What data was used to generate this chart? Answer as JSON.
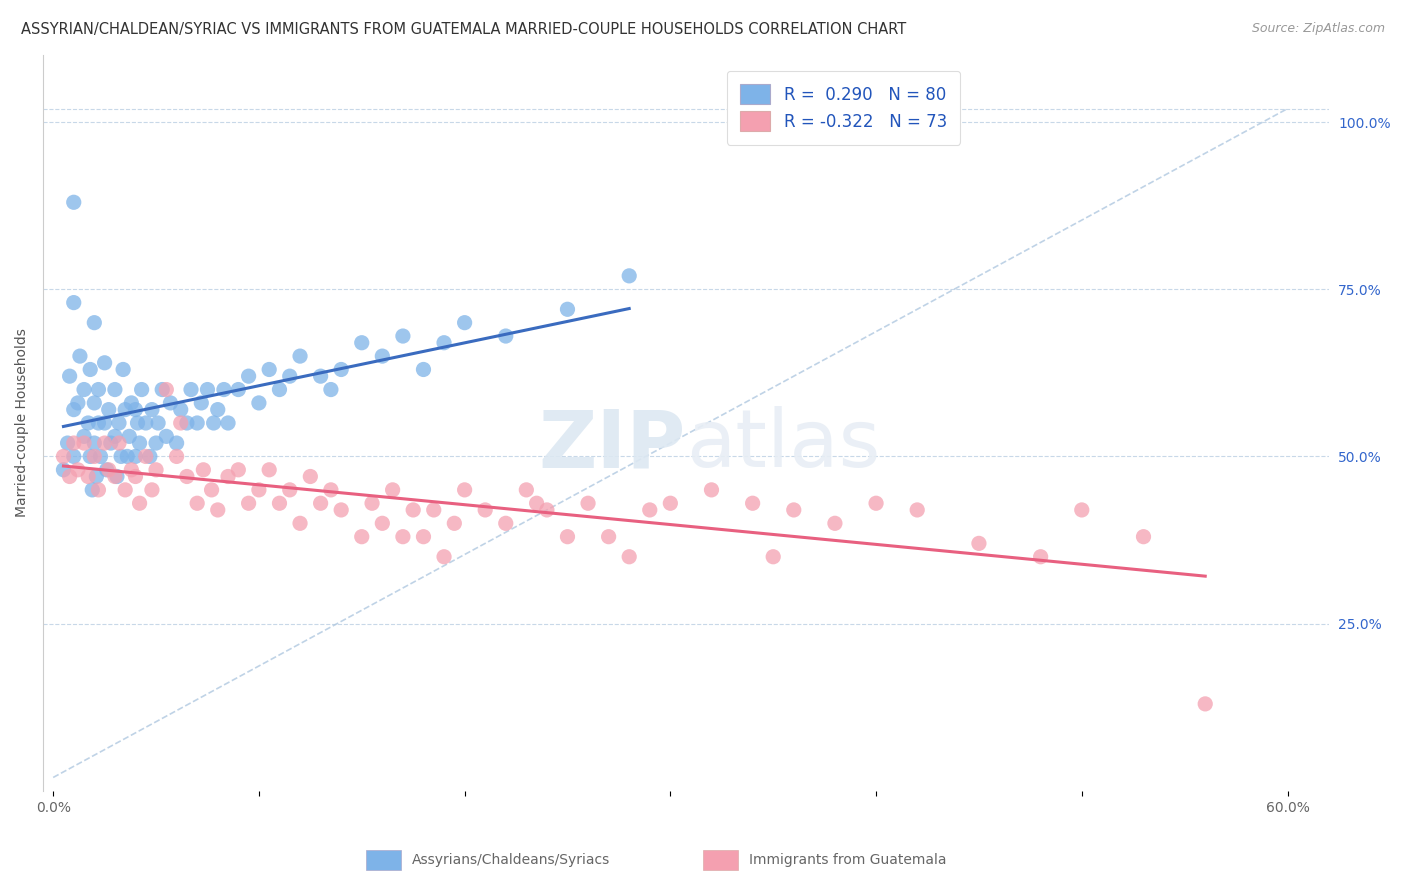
{
  "title": "ASSYRIAN/CHALDEAN/SYRIAC VS IMMIGRANTS FROM GUATEMALA MARRIED-COUPLE HOUSEHOLDS CORRELATION CHART",
  "source": "Source: ZipAtlas.com",
  "ylabel": "Married-couple Households",
  "xlabel_blue": "Assyrians/Chaldeans/Syriacs",
  "xlabel_pink": "Immigrants from Guatemala",
  "x_ticks": [
    "0.0%",
    "",
    "",
    "",
    "",
    "",
    "60.0%"
  ],
  "x_tick_vals": [
    0.0,
    0.1,
    0.2,
    0.3,
    0.4,
    0.5,
    0.6
  ],
  "y_ticks_right": [
    "25.0%",
    "50.0%",
    "75.0%",
    "100.0%"
  ],
  "y_tick_vals_right": [
    0.25,
    0.5,
    0.75,
    1.0
  ],
  "xlim": [
    -0.005,
    0.62
  ],
  "ylim": [
    0.0,
    1.1
  ],
  "R_blue": 0.29,
  "N_blue": 80,
  "R_pink": -0.322,
  "N_pink": 73,
  "blue_color": "#7EB3E8",
  "pink_color": "#F4A0B0",
  "blue_line_color": "#3A6BBF",
  "pink_line_color": "#E86080",
  "dashed_line_color": "#B0C8E0",
  "legend_text_color": "#2255BB",
  "background_color": "#FFFFFF",
  "title_fontsize": 10.5,
  "source_fontsize": 9,
  "blue_scatter_x": [
    0.005,
    0.007,
    0.008,
    0.01,
    0.01,
    0.01,
    0.01,
    0.012,
    0.013,
    0.015,
    0.015,
    0.017,
    0.018,
    0.018,
    0.019,
    0.02,
    0.02,
    0.02,
    0.021,
    0.022,
    0.022,
    0.023,
    0.025,
    0.025,
    0.026,
    0.027,
    0.028,
    0.03,
    0.03,
    0.031,
    0.032,
    0.033,
    0.034,
    0.035,
    0.036,
    0.037,
    0.038,
    0.04,
    0.04,
    0.041,
    0.042,
    0.043,
    0.045,
    0.047,
    0.048,
    0.05,
    0.051,
    0.053,
    0.055,
    0.057,
    0.06,
    0.062,
    0.065,
    0.067,
    0.07,
    0.072,
    0.075,
    0.078,
    0.08,
    0.083,
    0.085,
    0.09,
    0.095,
    0.1,
    0.105,
    0.11,
    0.115,
    0.12,
    0.13,
    0.135,
    0.14,
    0.15,
    0.16,
    0.17,
    0.18,
    0.19,
    0.2,
    0.22,
    0.25,
    0.28
  ],
  "blue_scatter_y": [
    0.48,
    0.52,
    0.62,
    0.88,
    0.73,
    0.57,
    0.5,
    0.58,
    0.65,
    0.53,
    0.6,
    0.55,
    0.5,
    0.63,
    0.45,
    0.52,
    0.58,
    0.7,
    0.47,
    0.55,
    0.6,
    0.5,
    0.55,
    0.64,
    0.48,
    0.57,
    0.52,
    0.53,
    0.6,
    0.47,
    0.55,
    0.5,
    0.63,
    0.57,
    0.5,
    0.53,
    0.58,
    0.5,
    0.57,
    0.55,
    0.52,
    0.6,
    0.55,
    0.5,
    0.57,
    0.52,
    0.55,
    0.6,
    0.53,
    0.58,
    0.52,
    0.57,
    0.55,
    0.6,
    0.55,
    0.58,
    0.6,
    0.55,
    0.57,
    0.6,
    0.55,
    0.6,
    0.62,
    0.58,
    0.63,
    0.6,
    0.62,
    0.65,
    0.62,
    0.6,
    0.63,
    0.67,
    0.65,
    0.68,
    0.63,
    0.67,
    0.7,
    0.68,
    0.72,
    0.77
  ],
  "pink_scatter_x": [
    0.005,
    0.008,
    0.01,
    0.012,
    0.015,
    0.017,
    0.02,
    0.022,
    0.025,
    0.027,
    0.03,
    0.032,
    0.035,
    0.038,
    0.04,
    0.042,
    0.045,
    0.048,
    0.05,
    0.055,
    0.06,
    0.062,
    0.065,
    0.07,
    0.073,
    0.077,
    0.08,
    0.085,
    0.09,
    0.095,
    0.1,
    0.105,
    0.11,
    0.115,
    0.12,
    0.125,
    0.13,
    0.135,
    0.14,
    0.15,
    0.155,
    0.16,
    0.165,
    0.17,
    0.175,
    0.18,
    0.185,
    0.19,
    0.195,
    0.2,
    0.21,
    0.22,
    0.23,
    0.235,
    0.24,
    0.25,
    0.26,
    0.27,
    0.28,
    0.29,
    0.3,
    0.32,
    0.34,
    0.35,
    0.36,
    0.38,
    0.4,
    0.42,
    0.45,
    0.48,
    0.5,
    0.53,
    0.56
  ],
  "pink_scatter_y": [
    0.5,
    0.47,
    0.52,
    0.48,
    0.52,
    0.47,
    0.5,
    0.45,
    0.52,
    0.48,
    0.47,
    0.52,
    0.45,
    0.48,
    0.47,
    0.43,
    0.5,
    0.45,
    0.48,
    0.6,
    0.5,
    0.55,
    0.47,
    0.43,
    0.48,
    0.45,
    0.42,
    0.47,
    0.48,
    0.43,
    0.45,
    0.48,
    0.43,
    0.45,
    0.4,
    0.47,
    0.43,
    0.45,
    0.42,
    0.38,
    0.43,
    0.4,
    0.45,
    0.38,
    0.42,
    0.38,
    0.42,
    0.35,
    0.4,
    0.45,
    0.42,
    0.4,
    0.45,
    0.43,
    0.42,
    0.38,
    0.43,
    0.38,
    0.35,
    0.42,
    0.43,
    0.45,
    0.43,
    0.35,
    0.42,
    0.4,
    0.43,
    0.42,
    0.37,
    0.35,
    0.42,
    0.38,
    0.13
  ]
}
